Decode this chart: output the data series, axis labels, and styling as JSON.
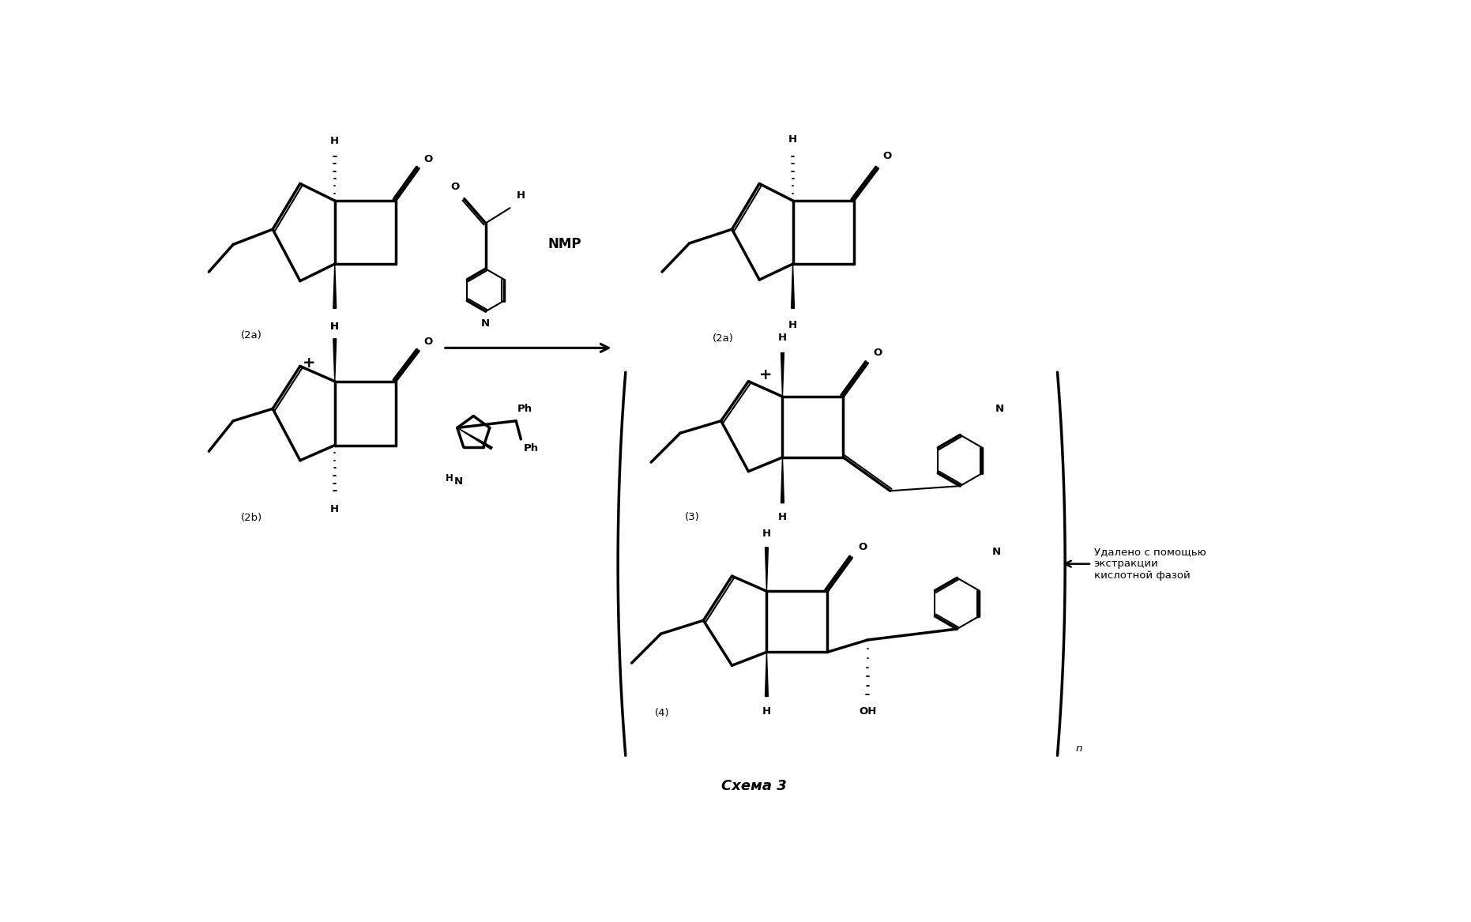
{
  "title": "Схема 3",
  "background_color": "#ffffff",
  "figsize": [
    18.62,
    11.67
  ],
  "dpi": 100,
  "annotation_text": "Удалено с помощью\nэкстракции\nкислотной фазой",
  "label_2a": "(2a)",
  "label_2b": "(2b)",
  "label_3": "(3)",
  "label_4": "(4)",
  "label_nmp": "NMP",
  "label_n": "n",
  "label_plus": "+"
}
